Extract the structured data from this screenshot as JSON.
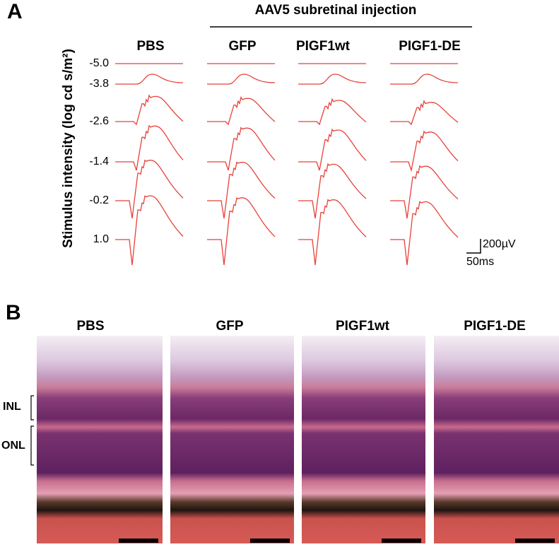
{
  "panel_a": {
    "label": "A",
    "group_label": "AAV5 subretinal injection",
    "groups": [
      "PBS",
      "GFP",
      "PIGF1wt",
      "PIGF1-DE"
    ],
    "y_axis_title": "Stimulus intensity (log cd s/m²)",
    "intensities": [
      "-5.0",
      "-3.8",
      "-2.6",
      "-1.4",
      "-0.2",
      "1.0"
    ],
    "scale_bar": {
      "amplitude": "200µV",
      "time": "50ms"
    }
  },
  "panel_b": {
    "label": "B",
    "groups": [
      "PBS",
      "GFP",
      "PIGF1wt",
      "PIGF1-DE"
    ],
    "layers": [
      "INL",
      "ONL"
    ]
  }
}
